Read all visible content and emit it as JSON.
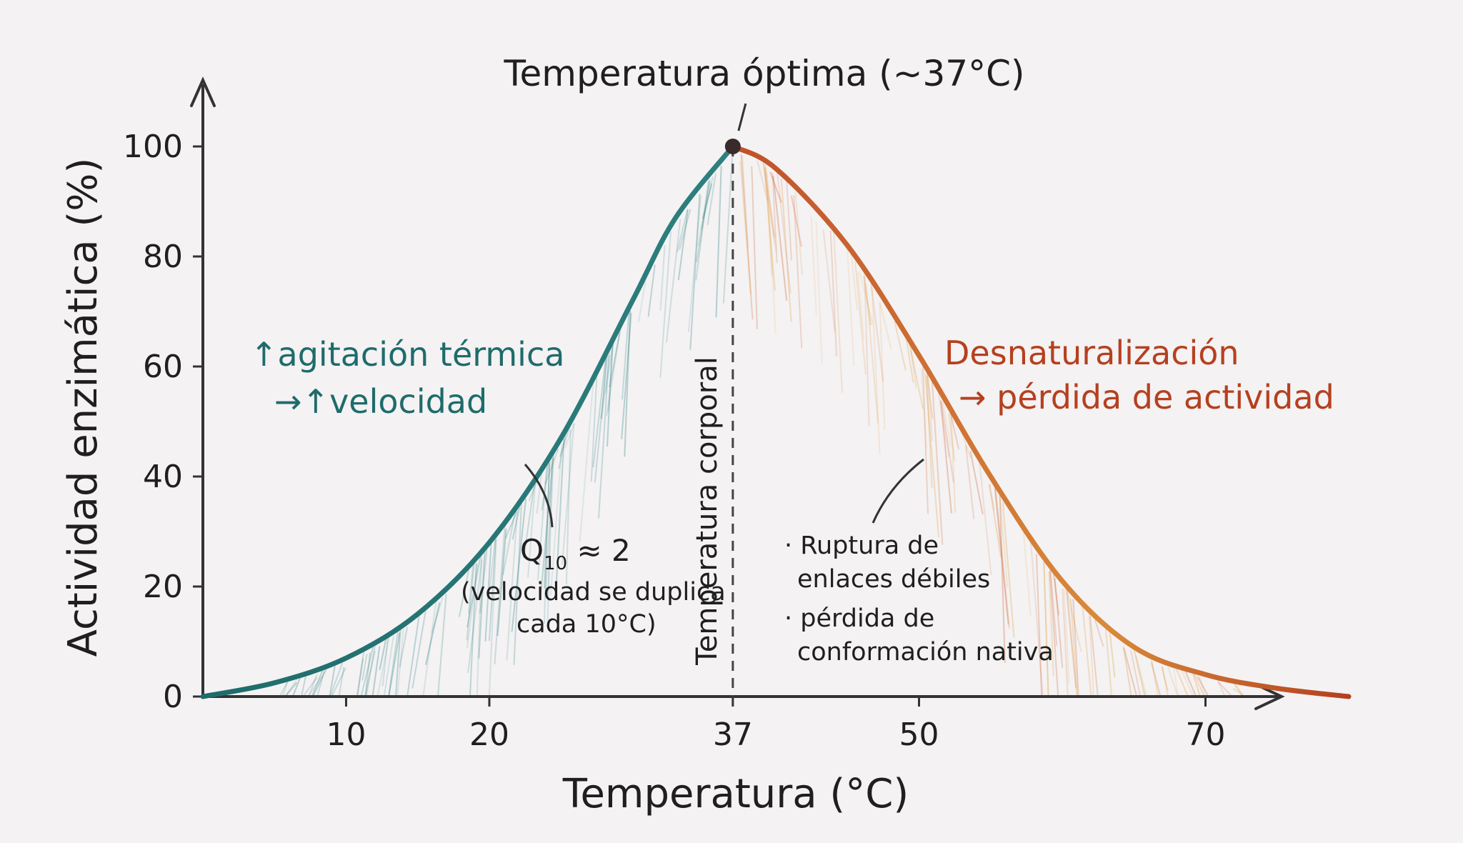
{
  "chart_data": {
    "type": "line",
    "title": "Temperatura óptima (~37°C)",
    "xlabel": "Temperatura (°C)",
    "ylabel": "Actividad enzimática (%)",
    "xlim": [
      0,
      85
    ],
    "ylim": [
      0,
      100
    ],
    "x_ticks": [
      "10",
      "20",
      "37",
      "50",
      "70"
    ],
    "y_ticks": [
      "0",
      "20",
      "40",
      "60",
      "80",
      "100"
    ],
    "grid": false,
    "optimum": {
      "x": 37,
      "y": 100
    },
    "series": [
      {
        "values": [
          {
            "x": 0,
            "y": 0
          },
          {
            "x": 5,
            "y": 2.5
          },
          {
            "x": 10,
            "y": 7
          },
          {
            "x": 15,
            "y": 15
          },
          {
            "x": 20,
            "y": 28
          },
          {
            "x": 25,
            "y": 47
          },
          {
            "x": 30,
            "y": 72
          },
          {
            "x": 33,
            "y": 87
          },
          {
            "x": 37,
            "y": 100
          },
          {
            "x": 40,
            "y": 96
          },
          {
            "x": 45,
            "y": 82
          },
          {
            "x": 50,
            "y": 62
          },
          {
            "x": 55,
            "y": 40
          },
          {
            "x": 60,
            "y": 21
          },
          {
            "x": 65,
            "y": 9
          },
          {
            "x": 70,
            "y": 4
          },
          {
            "x": 75,
            "y": 1.5
          },
          {
            "x": 80,
            "y": 0
          }
        ]
      }
    ],
    "colors": {
      "rising": "#1f6b6b",
      "falling": "#b5401f",
      "falling_light": "#e0a040",
      "axis": "#333333",
      "optimum_dot": "#3a2a2a"
    },
    "annotations": {
      "rise_line1": "↑agitación térmica",
      "rise_line2": "→↑velocidad",
      "fall_line1": "Desnaturalización",
      "fall_line2": "→ pérdida de actividad",
      "vline_label": "Temperatura corporal",
      "q10_label": "Q",
      "q10_sub": "10",
      "q10_value": " ≈ 2",
      "q10_note1": "(velocidad se duplica",
      "q10_note2": "cada 10°C)",
      "fall_note1": "· Ruptura de",
      "fall_note2": "enlaces débiles",
      "fall_note3": "· pérdida de",
      "fall_note4": "conformación nativa"
    }
  }
}
